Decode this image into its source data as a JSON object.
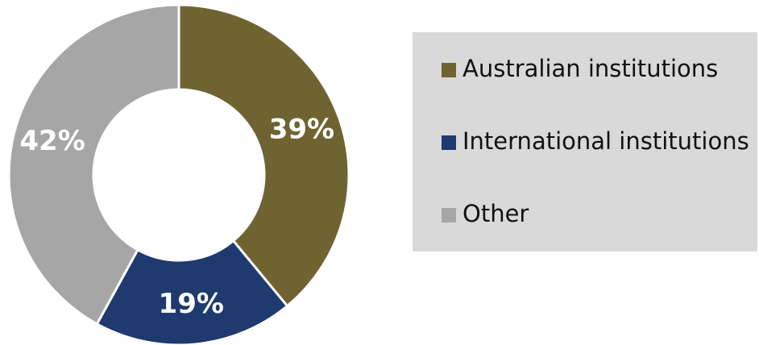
{
  "chart_data": {
    "type": "pie",
    "donut": true,
    "categories": [
      "Australian institutions",
      "International institutions",
      "Other"
    ],
    "values": [
      39,
      19,
      42
    ],
    "value_labels": [
      "39%",
      "19%",
      "42%"
    ],
    "colors": [
      "#6f6431",
      "#1e3a6e",
      "#a6a6a6"
    ]
  }
}
